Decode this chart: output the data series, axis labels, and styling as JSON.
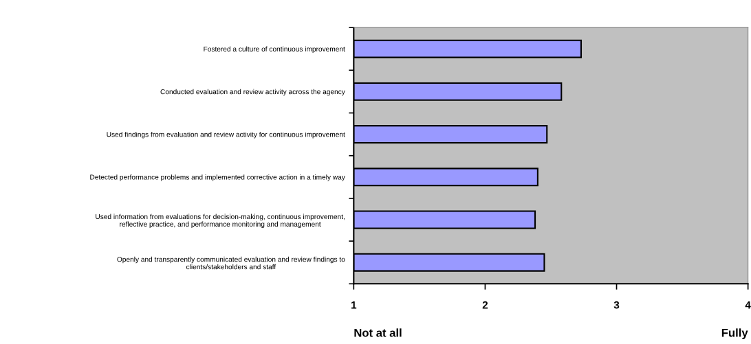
{
  "chart_data": {
    "type": "bar",
    "orientation": "horizontal",
    "categories": [
      "Fostered a culture of continuous improvement",
      "Conducted evaluation and review activity across the agency",
      "Used findings from evaluation and review activity for continuous improvement",
      "Detected performance problems and implemented corrective action in a timely way",
      "Used information from evaluations for decision-making, continuous improvement,\nreflective practice, and performance monitoring and management",
      "Openly and transparently communicated evaluation and review findings to\nclients/stakeholders and staff"
    ],
    "values": [
      2.73,
      2.58,
      2.47,
      2.4,
      2.38,
      2.45
    ],
    "color": "#9999ff",
    "xlim": [
      1,
      4
    ],
    "xticks": [
      1,
      2,
      3,
      4
    ],
    "grid": false,
    "legend": false,
    "annotations": [
      "Not at all",
      "Fully"
    ]
  }
}
